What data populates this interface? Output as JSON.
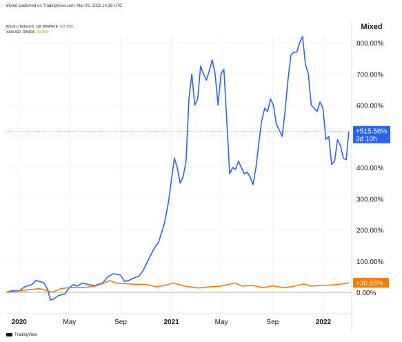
{
  "header": {
    "published": "dfvold published on TradingView.com, Mar 03, 2022 14:38 UTC"
  },
  "legend": [
    {
      "name": "Bitcoin / TetherUS, 1W, BINANCE",
      "value": "515.56%",
      "color": "#2962ff"
    },
    {
      "name": "XAUUSD, OANDA",
      "value": "30.65%",
      "color": "#f57c00"
    }
  ],
  "scale_mode": "Mixed",
  "price_labels": {
    "btc": {
      "line1": "+515.56%",
      "line2": "3d 10h"
    },
    "gold": {
      "line1": "+30.65%"
    }
  },
  "footer": {
    "brand": "TradingView"
  },
  "colors": {
    "btc": "#2962ff",
    "gold": "#f57c00",
    "grid": "#eef0f3",
    "axis": "#131722"
  },
  "chart_data": {
    "type": "line",
    "y_unit": "%",
    "ylim": [
      -50,
      870
    ],
    "y_ticks": [
      0,
      100,
      200,
      300,
      400,
      500,
      600,
      700,
      800
    ],
    "y_tick_labels": [
      "0.00%",
      "100.00%",
      "200.00%",
      "300.00%",
      "400.00%",
      "",
      "600.00%",
      "700.00%",
      "800.00%"
    ],
    "xlim": [
      "2019-12-01",
      "2022-03-10"
    ],
    "x_ticks": [
      {
        "date": "2020-01-01",
        "label": "2020",
        "bold": true
      },
      {
        "date": "2020-05-01",
        "label": "May",
        "bold": false
      },
      {
        "date": "2020-09-01",
        "label": "Sep",
        "bold": false
      },
      {
        "date": "2021-01-01",
        "label": "2021",
        "bold": true
      },
      {
        "date": "2021-05-01",
        "label": "May",
        "bold": false
      },
      {
        "date": "2021-09-01",
        "label": "Sep",
        "bold": false
      },
      {
        "date": "2022-01-01",
        "label": "2022",
        "bold": true
      }
    ],
    "series": [
      {
        "name": "Bitcoin / TetherUS, 1W, BINANCE",
        "color": "#2962ff",
        "last_value": 515.56,
        "points": [
          [
            "2019-12-01",
            0
          ],
          [
            "2019-12-15",
            5
          ],
          [
            "2020-01-01",
            5
          ],
          [
            "2020-01-15",
            18
          ],
          [
            "2020-02-01",
            25
          ],
          [
            "2020-02-10",
            38
          ],
          [
            "2020-02-20",
            35
          ],
          [
            "2020-03-01",
            30
          ],
          [
            "2020-03-10",
            8
          ],
          [
            "2020-03-16",
            -25
          ],
          [
            "2020-03-25",
            -20
          ],
          [
            "2020-04-05",
            -10
          ],
          [
            "2020-04-20",
            -5
          ],
          [
            "2020-05-01",
            15
          ],
          [
            "2020-05-10",
            25
          ],
          [
            "2020-05-20",
            20
          ],
          [
            "2020-06-01",
            30
          ],
          [
            "2020-06-15",
            25
          ],
          [
            "2020-07-01",
            22
          ],
          [
            "2020-07-20",
            30
          ],
          [
            "2020-08-01",
            50
          ],
          [
            "2020-08-15",
            60
          ],
          [
            "2020-09-01",
            55
          ],
          [
            "2020-09-10",
            35
          ],
          [
            "2020-09-20",
            38
          ],
          [
            "2020-10-01",
            45
          ],
          [
            "2020-10-15",
            52
          ],
          [
            "2020-10-25",
            70
          ],
          [
            "2020-11-05",
            100
          ],
          [
            "2020-11-20",
            140
          ],
          [
            "2020-12-01",
            160
          ],
          [
            "2020-12-15",
            220
          ],
          [
            "2020-12-25",
            290
          ],
          [
            "2021-01-03",
            380
          ],
          [
            "2021-01-08",
            430
          ],
          [
            "2021-01-15",
            400
          ],
          [
            "2021-01-22",
            350
          ],
          [
            "2021-01-29",
            370
          ],
          [
            "2021-02-05",
            420
          ],
          [
            "2021-02-12",
            620
          ],
          [
            "2021-02-19",
            700
          ],
          [
            "2021-02-26",
            600
          ],
          [
            "2021-03-05",
            620
          ],
          [
            "2021-03-12",
            725
          ],
          [
            "2021-03-19",
            700
          ],
          [
            "2021-03-26",
            680
          ],
          [
            "2021-04-02",
            710
          ],
          [
            "2021-04-09",
            745
          ],
          [
            "2021-04-16",
            700
          ],
          [
            "2021-04-23",
            600
          ],
          [
            "2021-04-30",
            700
          ],
          [
            "2021-05-07",
            715
          ],
          [
            "2021-05-14",
            550
          ],
          [
            "2021-05-21",
            380
          ],
          [
            "2021-05-28",
            400
          ],
          [
            "2021-06-04",
            395
          ],
          [
            "2021-06-11",
            420
          ],
          [
            "2021-06-18",
            400
          ],
          [
            "2021-06-25",
            380
          ],
          [
            "2021-07-02",
            385
          ],
          [
            "2021-07-09",
            370
          ],
          [
            "2021-07-16",
            345
          ],
          [
            "2021-07-23",
            400
          ],
          [
            "2021-07-30",
            480
          ],
          [
            "2021-08-06",
            550
          ],
          [
            "2021-08-13",
            590
          ],
          [
            "2021-08-20",
            580
          ],
          [
            "2021-08-27",
            620
          ],
          [
            "2021-09-03",
            600
          ],
          [
            "2021-09-10",
            540
          ],
          [
            "2021-09-17",
            520
          ],
          [
            "2021-09-24",
            500
          ],
          [
            "2021-10-01",
            580
          ],
          [
            "2021-10-08",
            680
          ],
          [
            "2021-10-15",
            760
          ],
          [
            "2021-10-22",
            770
          ],
          [
            "2021-10-29",
            770
          ],
          [
            "2021-11-05",
            800
          ],
          [
            "2021-11-12",
            820
          ],
          [
            "2021-11-19",
            730
          ],
          [
            "2021-11-26",
            700
          ],
          [
            "2021-12-03",
            600
          ],
          [
            "2021-12-10",
            590
          ],
          [
            "2021-12-17",
            580
          ],
          [
            "2021-12-24",
            610
          ],
          [
            "2021-12-31",
            590
          ],
          [
            "2022-01-07",
            490
          ],
          [
            "2022-01-14",
            500
          ],
          [
            "2022-01-21",
            410
          ],
          [
            "2022-01-28",
            420
          ],
          [
            "2022-02-04",
            490
          ],
          [
            "2022-02-11",
            470
          ],
          [
            "2022-02-18",
            430
          ],
          [
            "2022-02-25",
            425
          ],
          [
            "2022-03-03",
            515.56
          ]
        ]
      },
      {
        "name": "XAUUSD, OANDA",
        "color": "#f57c00",
        "last_value": 30.65,
        "points": [
          [
            "2019-12-01",
            0
          ],
          [
            "2020-01-01",
            4
          ],
          [
            "2020-01-20",
            8
          ],
          [
            "2020-02-20",
            12
          ],
          [
            "2020-03-10",
            5
          ],
          [
            "2020-03-20",
            0
          ],
          [
            "2020-04-10",
            12
          ],
          [
            "2020-05-01",
            15
          ],
          [
            "2020-06-01",
            15
          ],
          [
            "2020-07-01",
            20
          ],
          [
            "2020-07-20",
            28
          ],
          [
            "2020-08-06",
            38
          ],
          [
            "2020-08-20",
            30
          ],
          [
            "2020-09-10",
            28
          ],
          [
            "2020-10-01",
            26
          ],
          [
            "2020-11-01",
            25
          ],
          [
            "2020-11-25",
            18
          ],
          [
            "2020-12-15",
            22
          ],
          [
            "2021-01-05",
            30
          ],
          [
            "2021-02-01",
            20
          ],
          [
            "2021-03-08",
            14
          ],
          [
            "2021-04-05",
            18
          ],
          [
            "2021-05-01",
            20
          ],
          [
            "2021-06-01",
            30
          ],
          [
            "2021-06-20",
            20
          ],
          [
            "2021-07-15",
            22
          ],
          [
            "2021-08-09",
            15
          ],
          [
            "2021-09-01",
            21
          ],
          [
            "2021-09-29",
            15
          ],
          [
            "2021-10-20",
            19
          ],
          [
            "2021-11-16",
            27
          ],
          [
            "2021-12-01",
            20
          ],
          [
            "2021-12-31",
            22
          ],
          [
            "2022-01-25",
            24
          ],
          [
            "2022-02-15",
            27
          ],
          [
            "2022-03-03",
            30.65
          ]
        ]
      }
    ]
  }
}
